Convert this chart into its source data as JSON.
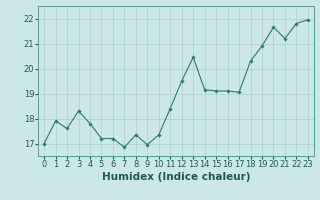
{
  "x": [
    0,
    1,
    2,
    3,
    4,
    5,
    6,
    7,
    8,
    9,
    10,
    11,
    12,
    13,
    14,
    15,
    16,
    17,
    18,
    19,
    20,
    21,
    22,
    23
  ],
  "y": [
    17.0,
    17.9,
    17.6,
    18.3,
    17.8,
    17.2,
    17.2,
    16.85,
    17.35,
    16.95,
    17.35,
    18.4,
    19.5,
    20.45,
    19.15,
    19.1,
    19.1,
    19.05,
    20.3,
    20.9,
    21.65,
    21.2,
    21.8,
    21.95
  ],
  "line_color": "#2d7a6e",
  "marker": "D",
  "marker_size": 1.8,
  "bg_color": "#cce8e6",
  "grid_color": "#aacfcd",
  "xlabel": "Humidex (Indice chaleur)",
  "ylabel": "",
  "xlim": [
    -0.5,
    23.5
  ],
  "ylim": [
    16.5,
    22.5
  ],
  "yticks": [
    17,
    18,
    19,
    20,
    21,
    22
  ],
  "xtick_labels": [
    "0",
    "1",
    "2",
    "3",
    "4",
    "5",
    "6",
    "7",
    "8",
    "9",
    "10",
    "11",
    "12",
    "13",
    "14",
    "15",
    "16",
    "17",
    "18",
    "19",
    "20",
    "21",
    "22",
    "23"
  ],
  "text_color": "#1a5c52",
  "tick_color": "#1a5c52",
  "label_fontsize": 7.5,
  "tick_fontsize": 6.0,
  "axis_color": "#5a9a90",
  "linewidth": 0.8
}
